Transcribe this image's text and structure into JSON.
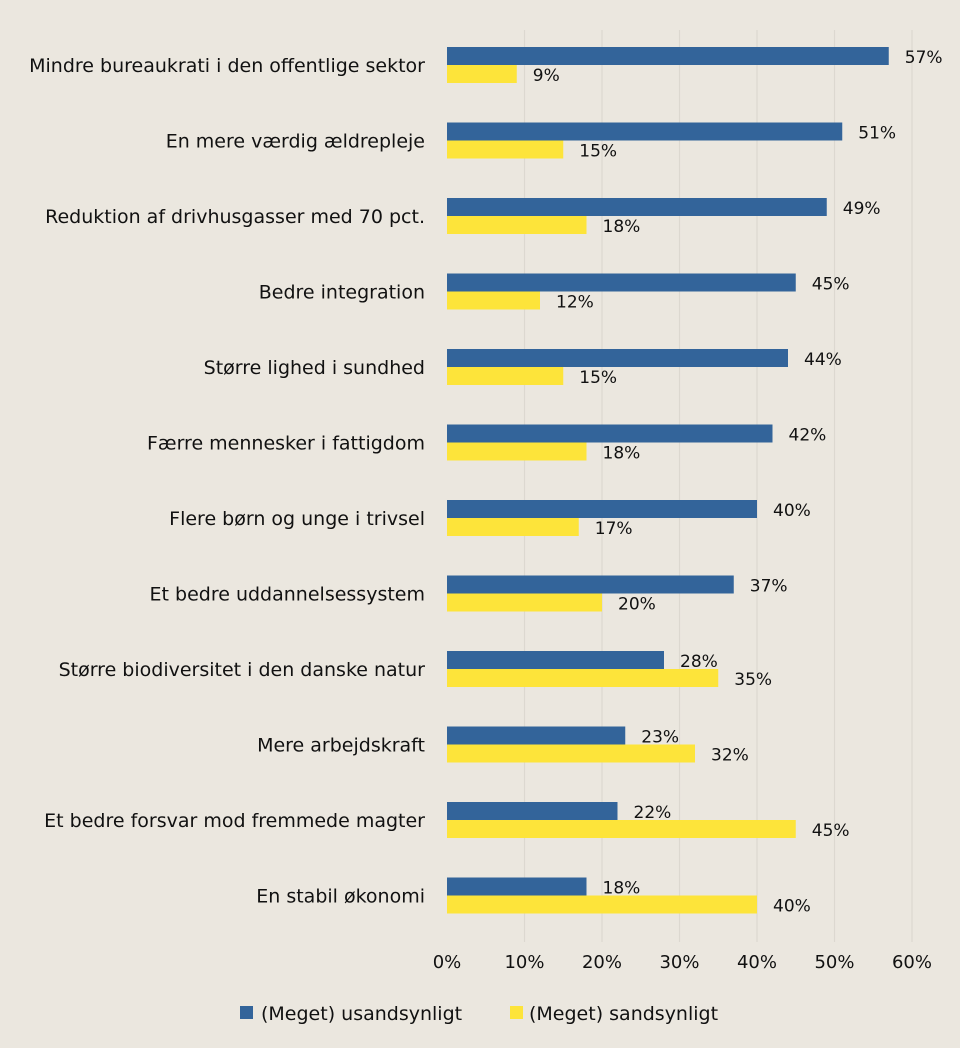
{
  "chart_data": {
    "type": "bar",
    "orientation": "horizontal",
    "categories": [
      "Mindre bureaukrati i den offentlige sektor",
      "En mere værdig ældrepleje",
      "Reduktion af drivhusgasser med 70 pct.",
      "Bedre integration",
      "Større lighed i sundhed",
      "Færre mennesker i fattigdom",
      "Flere børn og unge i trivsel",
      "Et bedre uddannelsessystem",
      "Større biodiversitet i den danske natur",
      "Mere arbejdskraft",
      "Et bedre forsvar mod fremmede magter",
      "En stabil økonomi"
    ],
    "series": [
      {
        "name": "(Meget) usandsynligt",
        "color": "#33649a",
        "values": [
          57,
          51,
          49,
          45,
          44,
          42,
          40,
          37,
          28,
          23,
          22,
          18
        ],
        "labels": [
          "57%",
          "51%",
          "49%",
          "45%",
          "44%",
          "42%",
          "40%",
          "37%",
          "28%",
          "23%",
          "22%",
          "18%"
        ]
      },
      {
        "name": "(Meget) sandsynligt",
        "color": "#fde43a",
        "values": [
          9,
          15,
          18,
          12,
          15,
          18,
          17,
          20,
          35,
          32,
          45,
          40
        ],
        "labels": [
          "9%",
          "15%",
          "18%",
          "12%",
          "15%",
          "18%",
          "17%",
          "20%",
          "35%",
          "32%",
          "45%",
          "40%"
        ]
      }
    ],
    "xlim": [
      0,
      60
    ],
    "xticks": [
      0,
      10,
      20,
      30,
      40,
      50,
      60
    ],
    "xtick_labels": [
      "0%",
      "10%",
      "20%",
      "30%",
      "40%",
      "50%",
      "60%"
    ],
    "grid": true,
    "gridline_color": "#dcd8d0",
    "legend_position": "bottom"
  }
}
